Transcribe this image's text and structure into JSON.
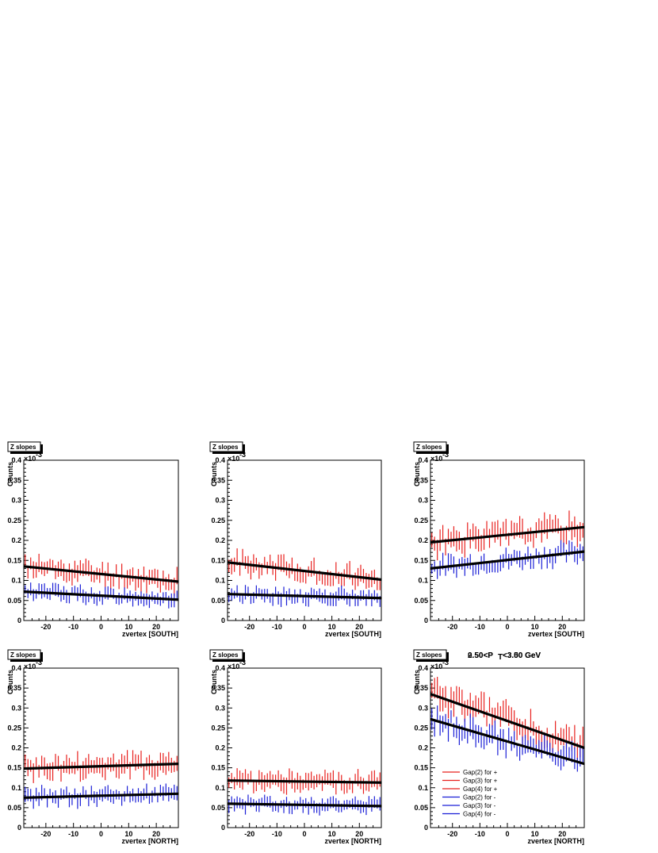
{
  "panel_title_line1": "0.50<P",
  "panel_title_sub": "T",
  "panel_title_line2": "<3.00 GeV",
  "panel_title_overlay": "2.50<P",
  "panel_title_overlay2": "<3.50 GeV",
  "colors": {
    "plus": "#e8201e",
    "minus": "#1a1fd6",
    "fit": "#000000"
  },
  "chart_data": [
    {
      "type": "scatter",
      "title": "Z slopes",
      "xlabel": "zvertex [SOUTH]",
      "ylabel": "Counts",
      "exponent": "-3",
      "xlim": [
        -28,
        28
      ],
      "ylim": [
        0,
        0.4
      ],
      "xticks": [
        "-20",
        "-10",
        "0",
        "10",
        "20"
      ],
      "yticks": [
        "0",
        "0.05",
        "0.1",
        "0.15",
        "0.2",
        "0.25",
        "0.3",
        "0.35",
        "0.4"
      ],
      "fits": [
        {
          "name": "plus",
          "y": [
            0.135,
            0.097
          ]
        },
        {
          "name": "minus",
          "y": [
            0.072,
            0.052
          ]
        }
      ],
      "series": [
        {
          "color": "plus",
          "start": 0.135,
          "end": 0.097,
          "noise": 0.018,
          "err": 0.018,
          "seed": 11
        },
        {
          "color": "minus",
          "start": 0.072,
          "end": 0.052,
          "noise": 0.012,
          "err": 0.014,
          "seed": 12
        }
      ]
    },
    {
      "type": "scatter",
      "title": "Z slopes",
      "xlabel": "zvertex [SOUTH]",
      "ylabel": "Counts",
      "exponent": "-3",
      "xlim": [
        -28,
        28
      ],
      "ylim": [
        0,
        0.4
      ],
      "xticks": [
        "-20",
        "-10",
        "0",
        "10",
        "20"
      ],
      "yticks": [
        "0",
        "0.05",
        "0.1",
        "0.15",
        "0.2",
        "0.25",
        "0.3",
        "0.35",
        "0.4"
      ],
      "fits": [
        {
          "name": "plus",
          "y": [
            0.145,
            0.102
          ]
        },
        {
          "name": "minus",
          "y": [
            0.066,
            0.056
          ]
        }
      ],
      "series": [
        {
          "color": "plus",
          "start": 0.145,
          "end": 0.102,
          "noise": 0.018,
          "err": 0.018,
          "seed": 21
        },
        {
          "color": "minus",
          "start": 0.066,
          "end": 0.056,
          "noise": 0.012,
          "err": 0.014,
          "seed": 22
        }
      ]
    },
    {
      "type": "scatter",
      "title": "Z slopes",
      "xlabel": "zvertex [SOUTH]",
      "ylabel": "Counts",
      "exponent": "-3",
      "xlim": [
        -28,
        28
      ],
      "ylim": [
        0,
        0.4
      ],
      "xticks": [
        "-20",
        "-10",
        "0",
        "10",
        "20"
      ],
      "yticks": [
        "0",
        "0.05",
        "0.1",
        "0.15",
        "0.2",
        "0.25",
        "0.3",
        "0.35",
        "0.4"
      ],
      "fits": [
        {
          "name": "plus",
          "y": [
            0.195,
            0.233
          ]
        },
        {
          "name": "minus",
          "y": [
            0.13,
            0.172
          ]
        }
      ],
      "series": [
        {
          "color": "plus",
          "start": 0.195,
          "end": 0.233,
          "noise": 0.022,
          "err": 0.022,
          "seed": 31
        },
        {
          "color": "minus",
          "start": 0.13,
          "end": 0.172,
          "noise": 0.016,
          "err": 0.017,
          "seed": 32
        }
      ]
    },
    {
      "type": "scatter",
      "title": "Z slopes",
      "xlabel": "zvertex [NORTH]",
      "ylabel": "Counts",
      "exponent": "-3",
      "xlim": [
        -28,
        28
      ],
      "ylim": [
        0,
        0.4
      ],
      "xticks": [
        "-20",
        "-10",
        "0",
        "10",
        "20"
      ],
      "yticks": [
        "0",
        "0.05",
        "0.1",
        "0.15",
        "0.2",
        "0.25",
        "0.3",
        "0.35",
        "0.4"
      ],
      "fits": [
        {
          "name": "plus",
          "y": [
            0.148,
            0.16
          ]
        },
        {
          "name": "minus",
          "y": [
            0.075,
            0.085
          ]
        }
      ],
      "series": [
        {
          "color": "plus",
          "start": 0.148,
          "end": 0.16,
          "noise": 0.02,
          "err": 0.02,
          "seed": 41
        },
        {
          "color": "minus",
          "start": 0.075,
          "end": 0.085,
          "noise": 0.013,
          "err": 0.015,
          "seed": 42
        }
      ]
    },
    {
      "type": "scatter",
      "title": "Z slopes",
      "xlabel": "zvertex [NORTH]",
      "ylabel": "Counts",
      "exponent": "-3",
      "xlim": [
        -28,
        28
      ],
      "ylim": [
        0,
        0.4
      ],
      "xticks": [
        "-20",
        "-10",
        "0",
        "10",
        "20"
      ],
      "yticks": [
        "0",
        "0.05",
        "0.1",
        "0.15",
        "0.2",
        "0.25",
        "0.3",
        "0.35",
        "0.4"
      ],
      "fits": [
        {
          "name": "plus",
          "y": [
            0.118,
            0.113
          ]
        },
        {
          "name": "minus",
          "y": [
            0.06,
            0.054
          ]
        }
      ],
      "series": [
        {
          "color": "plus",
          "start": 0.118,
          "end": 0.113,
          "noise": 0.016,
          "err": 0.017,
          "seed": 51
        },
        {
          "color": "minus",
          "start": 0.06,
          "end": 0.054,
          "noise": 0.011,
          "err": 0.013,
          "seed": 52
        }
      ]
    },
    {
      "type": "scatter",
      "title": "Z slopes",
      "xlabel": "zvertex [NORTH]",
      "ylabel": "Counts",
      "exponent": "-3",
      "xlim": [
        -28,
        28
      ],
      "ylim": [
        0,
        0.4
      ],
      "xticks": [
        "-20",
        "-10",
        "0",
        "10",
        "20"
      ],
      "yticks": [
        "0",
        "0.05",
        "0.1",
        "0.15",
        "0.2",
        "0.25",
        "0.3",
        "0.35",
        "0.4"
      ],
      "fits": [
        {
          "name": "plus",
          "y": [
            0.335,
            0.2
          ]
        },
        {
          "name": "minus",
          "y": [
            0.272,
            0.16
          ]
        }
      ],
      "series": [
        {
          "color": "plus",
          "start": 0.335,
          "end": 0.2,
          "noise": 0.026,
          "err": 0.025,
          "seed": 61
        },
        {
          "color": "minus",
          "start": 0.272,
          "end": 0.16,
          "noise": 0.022,
          "err": 0.022,
          "seed": 62
        }
      ],
      "legend": [
        {
          "label": "Gap(2) for +",
          "color": "plus"
        },
        {
          "label": "Gap(3) for +",
          "color": "plus"
        },
        {
          "label": "Gap(4) for +",
          "color": "plus"
        },
        {
          "label": "Gap(2) for -",
          "color": "minus"
        },
        {
          "label": "Gap(3) for -",
          "color": "minus"
        },
        {
          "label": "Gap(4) for -",
          "color": "minus"
        }
      ]
    }
  ]
}
